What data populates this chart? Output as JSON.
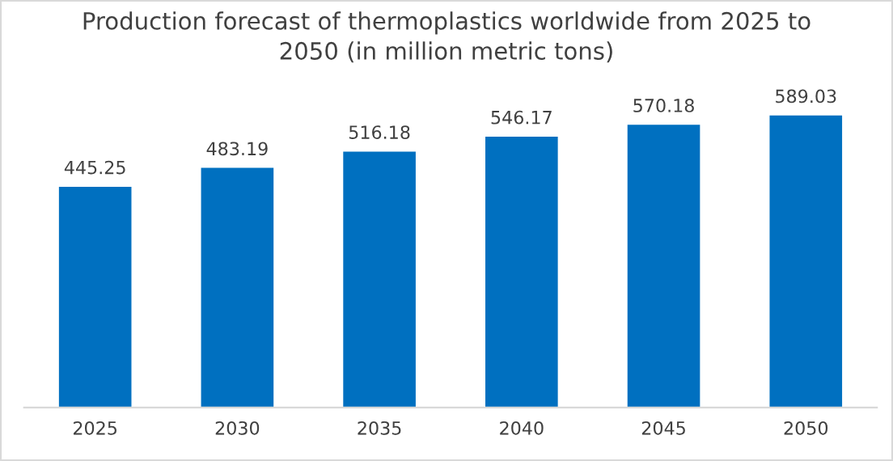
{
  "chart_data": {
    "type": "bar",
    "title": "Production forecast of thermoplastics worldwide from 2025 to\n2050 (in million metric tons)",
    "categories": [
      "2025",
      "2030",
      "2035",
      "2040",
      "2045",
      "2050"
    ],
    "values": [
      445.25,
      483.19,
      516.18,
      546.17,
      570.18,
      589.03
    ],
    "color": "#0070c0",
    "data_labels": true,
    "grid": false,
    "legend": false,
    "tick_labels": "x"
  }
}
